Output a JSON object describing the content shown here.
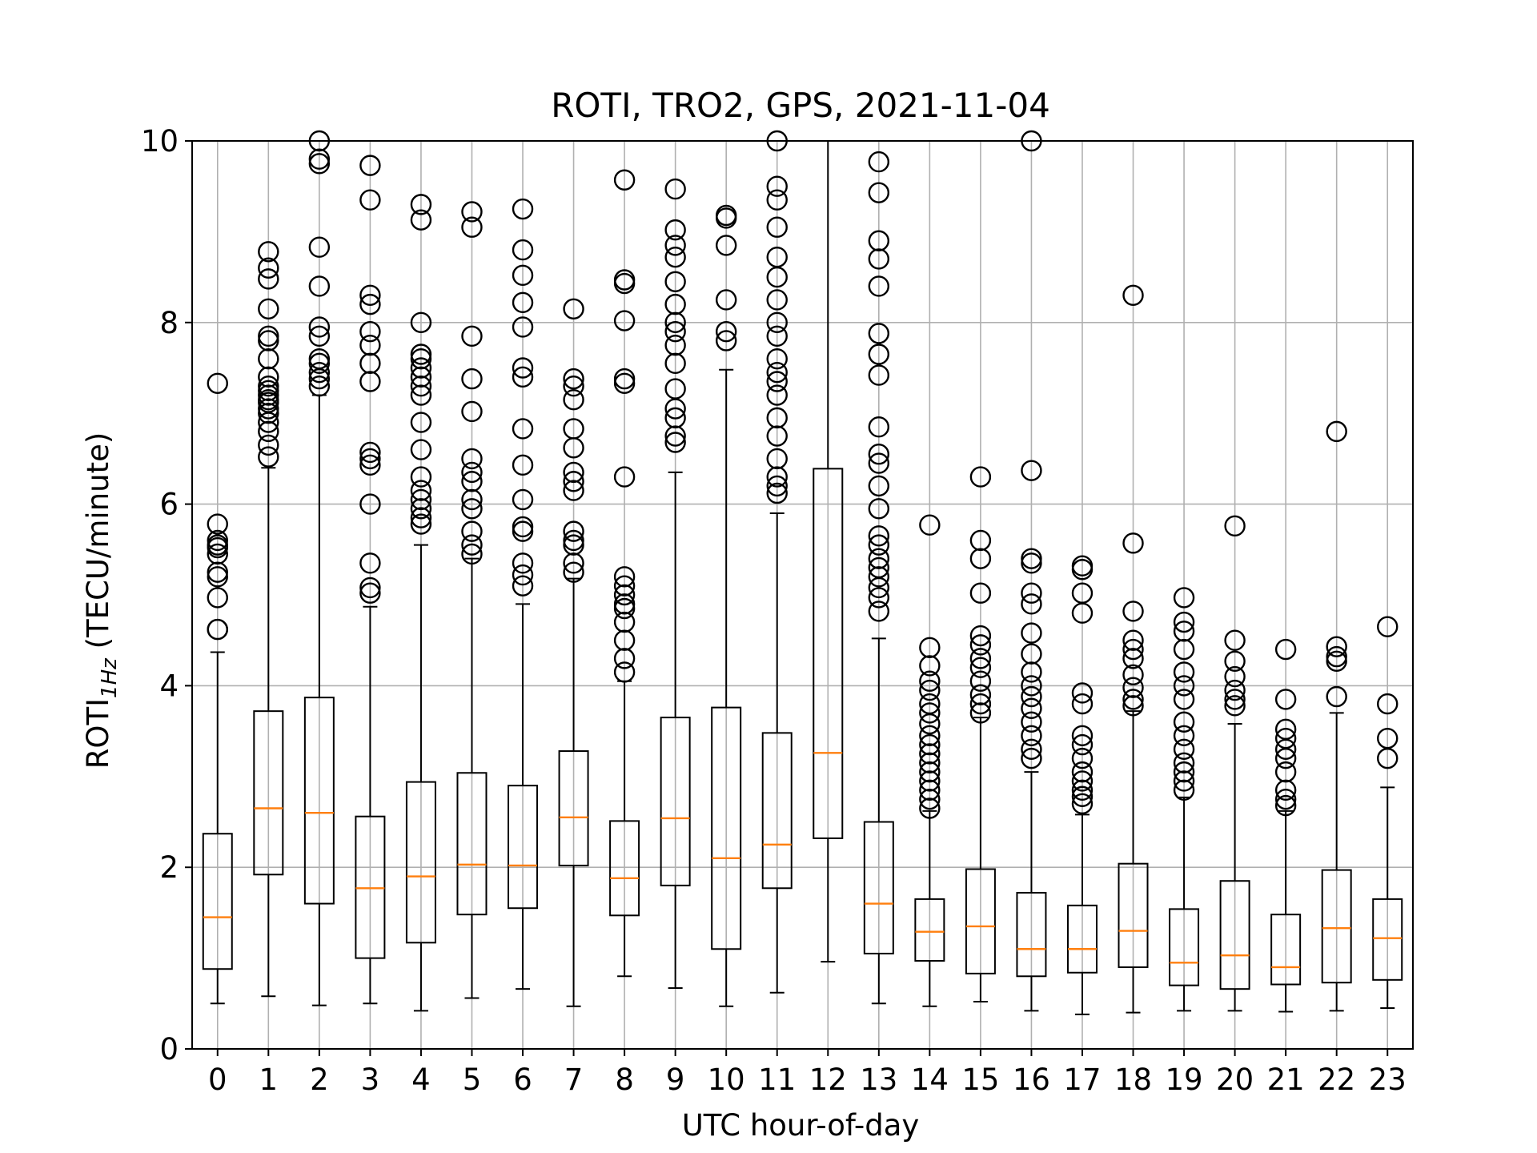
{
  "chart_data": {
    "type": "boxplot",
    "title": "ROTI, TRO2, GPS, 2021-11-04",
    "xlabel": "UTC hour-of-day",
    "ylabel": {
      "main": "ROTI",
      "sub": "1Hz",
      "unit": " (TECU/minute)"
    },
    "ylim": [
      0,
      10
    ],
    "yticks": [
      "0",
      "2",
      "4",
      "6",
      "8",
      "10"
    ],
    "grid": true,
    "colors": {
      "box": "#000000",
      "median": "#ff7f0e",
      "grid": "#b0b0b0"
    },
    "categories": [
      "0",
      "1",
      "2",
      "3",
      "4",
      "5",
      "6",
      "7",
      "8",
      "9",
      "10",
      "11",
      "12",
      "13",
      "14",
      "15",
      "16",
      "17",
      "18",
      "19",
      "20",
      "21",
      "22",
      "23"
    ],
    "boxes": [
      {
        "whislo": 0.5,
        "q1": 0.88,
        "med": 1.45,
        "q3": 2.37,
        "whishi": 4.37,
        "fliers": [
          4.62,
          4.62,
          4.97,
          5.2,
          5.25,
          5.45,
          5.52,
          5.55,
          5.6,
          5.78,
          7.33
        ]
      },
      {
        "whislo": 0.58,
        "q1": 1.92,
        "med": 2.65,
        "q3": 3.72,
        "whishi": 6.4,
        "fliers": [
          6.52,
          6.65,
          6.8,
          6.9,
          7.0,
          7.05,
          7.12,
          7.15,
          7.2,
          7.25,
          7.3,
          7.4,
          7.6,
          7.8,
          7.85,
          8.15,
          8.48,
          8.6,
          8.78
        ]
      },
      {
        "whislo": 0.48,
        "q1": 1.6,
        "med": 2.6,
        "q3": 3.87,
        "whishi": 7.2,
        "fliers": [
          7.3,
          7.38,
          7.45,
          7.55,
          7.6,
          7.85,
          7.95,
          8.4,
          8.83,
          9.75,
          9.8,
          10.0
        ]
      },
      {
        "whislo": 0.5,
        "q1": 1.0,
        "med": 1.77,
        "q3": 2.56,
        "whishi": 4.87,
        "fliers": [
          5.02,
          5.08,
          5.35,
          6.0,
          6.43,
          6.5,
          6.57,
          7.35,
          7.55,
          7.75,
          7.9,
          8.2,
          8.3,
          9.35,
          9.73
        ]
      },
      {
        "whislo": 0.42,
        "q1": 1.17,
        "med": 1.9,
        "q3": 2.94,
        "whishi": 5.55,
        "fliers": [
          5.78,
          5.85,
          5.95,
          6.05,
          6.15,
          6.3,
          6.6,
          6.9,
          7.2,
          7.3,
          7.4,
          7.5,
          7.6,
          7.65,
          8.0,
          9.13,
          9.3
        ]
      },
      {
        "whislo": 0.56,
        "q1": 1.48,
        "med": 2.03,
        "q3": 3.04,
        "whishi": 5.4,
        "fliers": [
          5.45,
          5.55,
          5.7,
          5.95,
          6.05,
          6.25,
          6.35,
          6.5,
          7.02,
          7.38,
          7.85,
          9.05,
          9.22
        ]
      },
      {
        "whislo": 0.66,
        "q1": 1.55,
        "med": 2.02,
        "q3": 2.9,
        "whishi": 4.9,
        "fliers": [
          5.1,
          5.22,
          5.35,
          5.7,
          5.75,
          6.05,
          6.43,
          6.83,
          7.4,
          7.5,
          7.95,
          8.22,
          8.52,
          8.8,
          9.25
        ]
      },
      {
        "whislo": 0.47,
        "q1": 2.02,
        "med": 2.55,
        "q3": 3.28,
        "whishi": 5.18,
        "fliers": [
          5.25,
          5.35,
          5.55,
          5.6,
          5.7,
          6.15,
          6.25,
          6.35,
          6.62,
          6.83,
          7.15,
          7.3,
          7.38,
          8.15
        ]
      },
      {
        "whislo": 0.8,
        "q1": 1.47,
        "med": 1.88,
        "q3": 2.51,
        "whishi": 4.05,
        "fliers": [
          4.15,
          4.3,
          4.5,
          4.7,
          4.85,
          4.9,
          5.0,
          5.1,
          5.2,
          6.3,
          7.33,
          7.38,
          8.43,
          8.47,
          8.02,
          9.57
        ]
      },
      {
        "whislo": 0.67,
        "q1": 1.8,
        "med": 2.54,
        "q3": 3.65,
        "whishi": 6.35,
        "fliers": [
          6.68,
          6.75,
          6.95,
          7.05,
          7.27,
          7.55,
          7.75,
          7.9,
          8.0,
          8.2,
          8.45,
          8.72,
          8.85,
          9.02,
          9.47
        ]
      },
      {
        "whislo": 0.47,
        "q1": 1.1,
        "med": 2.1,
        "q3": 3.76,
        "whishi": 7.48,
        "fliers": [
          7.8,
          7.9,
          8.25,
          8.85,
          9.15,
          9.18
        ]
      },
      {
        "whislo": 0.62,
        "q1": 1.77,
        "med": 2.25,
        "q3": 3.48,
        "whishi": 5.9,
        "fliers": [
          6.12,
          6.2,
          6.3,
          6.5,
          6.75,
          6.95,
          7.2,
          7.35,
          7.45,
          7.6,
          7.85,
          8.0,
          8.25,
          8.5,
          8.72,
          9.05,
          9.35,
          9.5,
          10.0
        ]
      },
      {
        "whislo": 0.96,
        "q1": 2.32,
        "med": 3.26,
        "q3": 6.39,
        "whishi": 10.0,
        "fliers": []
      },
      {
        "whislo": 0.5,
        "q1": 1.05,
        "med": 1.6,
        "q3": 2.5,
        "whishi": 4.52,
        "fliers": [
          4.82,
          4.97,
          5.08,
          5.2,
          5.3,
          5.4,
          5.55,
          5.65,
          5.95,
          6.2,
          6.45,
          6.55,
          6.85,
          7.42,
          7.65,
          7.88,
          8.4,
          8.7,
          8.9,
          9.43,
          9.77
        ]
      },
      {
        "whislo": 0.47,
        "q1": 0.97,
        "med": 1.29,
        "q3": 1.65,
        "whishi": 2.62,
        "fliers": [
          2.65,
          2.75,
          2.85,
          2.95,
          3.05,
          3.15,
          3.25,
          3.35,
          3.45,
          3.58,
          3.7,
          3.8,
          3.95,
          4.05,
          4.22,
          4.42,
          5.77
        ]
      },
      {
        "whislo": 0.52,
        "q1": 0.83,
        "med": 1.35,
        "q3": 1.98,
        "whishi": 3.65,
        "fliers": [
          3.7,
          3.8,
          3.9,
          4.05,
          4.2,
          4.3,
          4.45,
          4.55,
          5.02,
          5.4,
          5.6,
          6.3
        ]
      },
      {
        "whislo": 0.42,
        "q1": 0.8,
        "med": 1.1,
        "q3": 1.72,
        "whishi": 3.05,
        "fliers": [
          3.2,
          3.3,
          3.45,
          3.6,
          3.75,
          3.88,
          4.0,
          4.15,
          4.35,
          4.58,
          4.9,
          5.02,
          5.35,
          5.4,
          6.37,
          10.0
        ]
      },
      {
        "whislo": 0.38,
        "q1": 0.84,
        "med": 1.1,
        "q3": 1.58,
        "whishi": 2.58,
        "fliers": [
          2.7,
          2.78,
          2.85,
          2.95,
          3.05,
          3.2,
          3.35,
          3.45,
          3.8,
          3.92,
          4.8,
          5.02,
          5.28,
          5.32
        ]
      },
      {
        "whislo": 0.4,
        "q1": 0.9,
        "med": 1.3,
        "q3": 2.04,
        "whishi": 3.72,
        "fliers": [
          3.78,
          3.85,
          3.98,
          4.12,
          4.3,
          4.4,
          4.5,
          4.82,
          5.57,
          8.3
        ]
      },
      {
        "whislo": 0.42,
        "q1": 0.7,
        "med": 0.95,
        "q3": 1.54,
        "whishi": 2.77,
        "fliers": [
          2.85,
          2.95,
          3.05,
          3.15,
          3.3,
          3.45,
          3.6,
          3.85,
          4.0,
          4.15,
          4.4,
          4.6,
          4.7,
          4.97
        ]
      },
      {
        "whislo": 0.42,
        "q1": 0.66,
        "med": 1.03,
        "q3": 1.85,
        "whishi": 3.58,
        "fliers": [
          3.78,
          3.85,
          3.95,
          4.1,
          4.27,
          4.5,
          5.76
        ]
      },
      {
        "whislo": 0.41,
        "q1": 0.71,
        "med": 0.9,
        "q3": 1.48,
        "whishi": 2.62,
        "fliers": [
          2.68,
          2.75,
          2.85,
          3.05,
          3.2,
          3.3,
          3.42,
          3.52,
          3.85,
          4.4
        ]
      },
      {
        "whislo": 0.42,
        "q1": 0.73,
        "med": 1.33,
        "q3": 1.97,
        "whishi": 3.7,
        "fliers": [
          3.88,
          4.27,
          4.32,
          4.43,
          6.8
        ]
      },
      {
        "whislo": 0.45,
        "q1": 0.76,
        "med": 1.22,
        "q3": 1.65,
        "whishi": 2.88,
        "fliers": [
          3.2,
          3.42,
          3.8,
          4.65
        ]
      }
    ]
  }
}
